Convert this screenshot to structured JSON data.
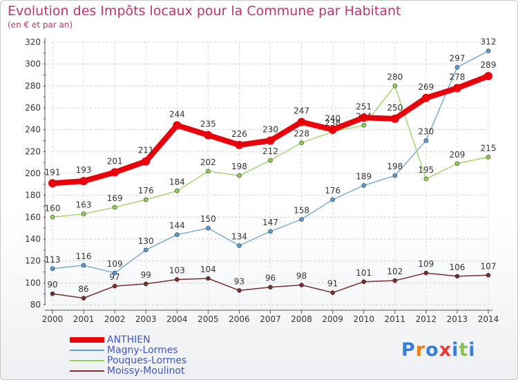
{
  "header": {
    "title": "Evolution des Impôts locaux pour la Commune par Habitant",
    "subtitle": "(en € et par an)"
  },
  "logo": {
    "text": "Proxiti",
    "colors": [
      "#3a7fd5",
      "#ef7d1a",
      "#3a7fd5",
      "#e53935",
      "#3a7fd5",
      "#8bc34a",
      "#3a7fd5"
    ]
  },
  "chart_data": {
    "type": "line",
    "x": [
      "2000",
      "2001",
      "2002",
      "2003",
      "2004",
      "2005",
      "2006",
      "2007",
      "2008",
      "2009",
      "2010",
      "2011",
      "2012",
      "2013",
      "2014"
    ],
    "ylim": [
      80,
      320
    ],
    "yticks": [
      80,
      100,
      120,
      140,
      160,
      180,
      200,
      220,
      240,
      260,
      280,
      300,
      320
    ],
    "grid": true,
    "legend_position": "bottom-left",
    "series": [
      {
        "name": "ANTHIEN",
        "color": "#e8000b",
        "values": [
          191,
          193,
          201,
          211,
          244,
          235,
          226,
          230,
          247,
          240,
          251,
          250,
          269,
          278,
          289
        ],
        "labels": [
          "191",
          "193",
          "201",
          "211",
          "244",
          "235",
          "226",
          "230",
          "247",
          "240",
          "251",
          "250",
          "269",
          "278",
          "289"
        ]
      },
      {
        "name": "Magny-Lormes",
        "color": "#5b9bd5",
        "values": [
          113,
          116,
          109,
          130,
          144,
          150,
          134,
          147,
          158,
          176,
          189,
          198,
          230,
          297,
          312
        ],
        "labels": [
          "113",
          "116",
          "109",
          "130",
          "144",
          "150",
          "134",
          "147",
          "158",
          "176",
          "189",
          "198",
          "230",
          "297",
          "312"
        ]
      },
      {
        "name": "Pouques-Lormes",
        "color": "#8fd14f",
        "values": [
          160,
          163,
          169,
          176,
          184,
          202,
          198,
          212,
          228,
          238,
          244,
          280,
          195,
          209,
          215
        ],
        "labels": [
          "160",
          "163",
          "169",
          "176",
          "184",
          "202",
          "198",
          "212",
          "228",
          "238",
          "244",
          "280",
          "195",
          "209",
          "215"
        ]
      },
      {
        "name": "Moissy-Moulinot",
        "color": "#7b2c2c",
        "values": [
          90,
          86,
          97,
          99,
          103,
          104,
          93,
          96,
          98,
          91,
          101,
          102,
          109,
          106,
          107
        ],
        "labels": [
          "90",
          "86",
          "97",
          "99",
          "103",
          "104",
          "93",
          "96",
          "98",
          "91",
          "101",
          "102",
          "109",
          "106",
          "107"
        ]
      }
    ]
  }
}
